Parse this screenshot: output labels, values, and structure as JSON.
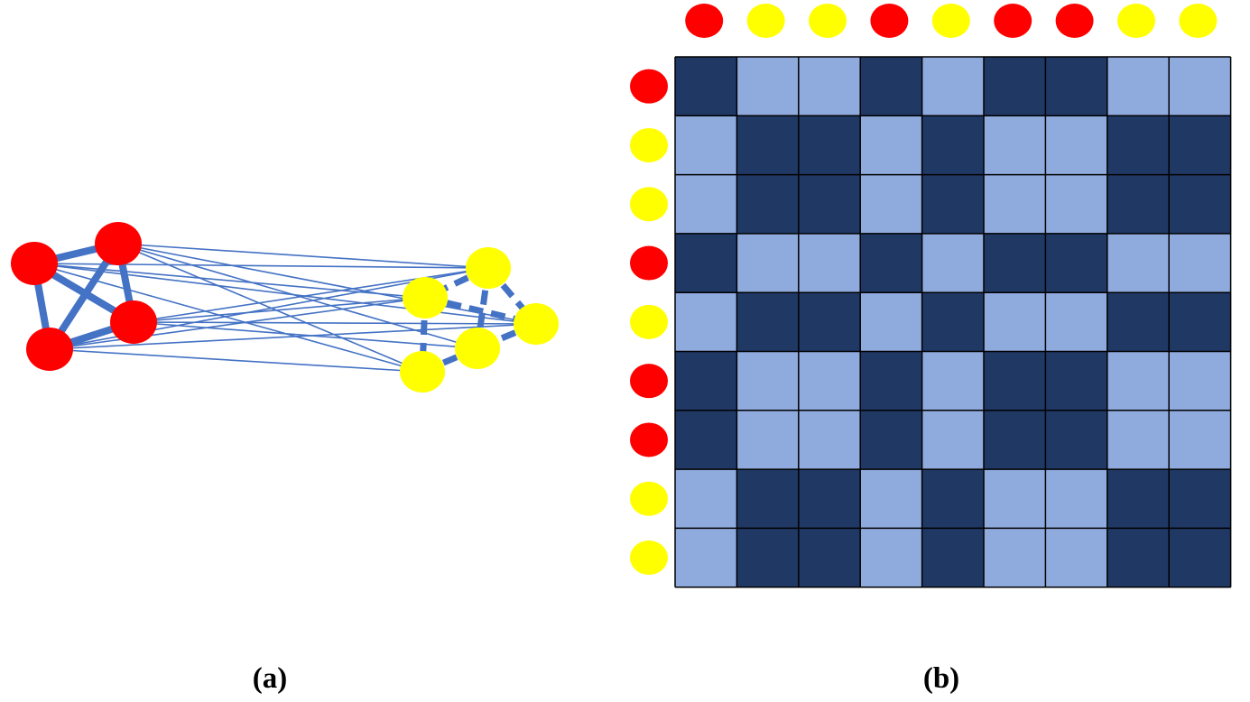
{
  "colors": {
    "community_a": "#ff0000",
    "community_b": "#ffff00",
    "edge": "#4472c4",
    "matrix_strong": "#203864",
    "matrix_weak": "#8faadc",
    "grid_line": "#000000"
  },
  "panel_a": {
    "caption": "(a)",
    "nodes": [
      {
        "id": "r1",
        "group": "red"
      },
      {
        "id": "r2",
        "group": "red"
      },
      {
        "id": "r3",
        "group": "red"
      },
      {
        "id": "r4",
        "group": "red"
      },
      {
        "id": "y1",
        "group": "yellow"
      },
      {
        "id": "y2",
        "group": "yellow"
      },
      {
        "id": "y3",
        "group": "yellow"
      },
      {
        "id": "y4",
        "group": "yellow"
      },
      {
        "id": "y5",
        "group": "yellow"
      }
    ],
    "strong_edges": [
      [
        "r1",
        "r2"
      ],
      [
        "r1",
        "r3"
      ],
      [
        "r1",
        "r4"
      ],
      [
        "r2",
        "r3"
      ],
      [
        "r2",
        "r4"
      ],
      [
        "r3",
        "r4"
      ],
      [
        "y1",
        "y2"
      ],
      [
        "y1",
        "y3"
      ],
      [
        "y1",
        "y4"
      ],
      [
        "y2",
        "y5"
      ],
      [
        "y3",
        "y4"
      ],
      [
        "y4",
        "y5"
      ],
      [
        "y2",
        "y3"
      ]
    ],
    "weak_edges": [
      [
        "r2",
        "y1"
      ],
      [
        "r2",
        "y3"
      ],
      [
        "r2",
        "y5"
      ],
      [
        "r2",
        "y4"
      ],
      [
        "r1",
        "y1"
      ],
      [
        "r1",
        "y2"
      ],
      [
        "r1",
        "y3"
      ],
      [
        "r1",
        "y5"
      ],
      [
        "r3",
        "y1"
      ],
      [
        "r3",
        "y2"
      ],
      [
        "r3",
        "y3"
      ],
      [
        "r3",
        "y4"
      ],
      [
        "r4",
        "y1"
      ],
      [
        "r4",
        "y2"
      ],
      [
        "r4",
        "y3"
      ],
      [
        "r4",
        "y5"
      ]
    ]
  },
  "panel_b": {
    "caption": "(b)",
    "order": [
      "red",
      "yellow",
      "yellow",
      "red",
      "yellow",
      "red",
      "red",
      "yellow",
      "yellow"
    ]
  }
}
